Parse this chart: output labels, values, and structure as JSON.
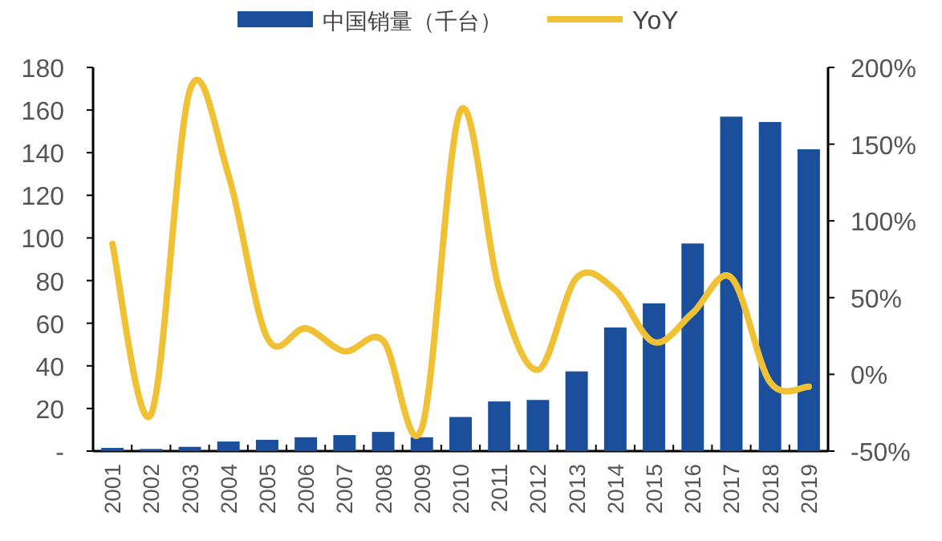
{
  "chart_data": {
    "type": "bar",
    "categories": [
      "2001",
      "2002",
      "2003",
      "2004",
      "2005",
      "2006",
      "2007",
      "2008",
      "2009",
      "2010",
      "2011",
      "2012",
      "2013",
      "2014",
      "2015",
      "2016",
      "2017",
      "2018",
      "2019"
    ],
    "series": [
      {
        "name": "中国销量（千台）",
        "color": "#1b4f9c",
        "values": [
          1.5,
          1,
          2,
          4.5,
          5.3,
          6.5,
          7.5,
          9,
          6.5,
          16,
          23.3,
          24,
          37.4,
          58,
          69.3,
          97.4,
          156.9,
          154.4,
          141.6
        ]
      },
      {
        "name": "YoY",
        "type": "line",
        "axis": "y2",
        "color": "#f0c134",
        "values": [
          85,
          -26,
          185,
          130,
          24,
          30,
          15,
          22,
          -35,
          172,
          55,
          3,
          63,
          55,
          21,
          40,
          63,
          -5,
          -8
        ]
      }
    ],
    "ylim": [
      0,
      180
    ],
    "yticks": [
      {
        "value": 0,
        "label": "-"
      },
      20,
      40,
      60,
      80,
      100,
      120,
      140,
      160,
      180
    ],
    "y2lim": [
      -50,
      200
    ],
    "y2ticks": [
      {
        "value": -50,
        "label": "-50%"
      },
      {
        "value": 0,
        "label": "0%"
      },
      {
        "value": 50,
        "label": "50%"
      },
      {
        "value": 100,
        "label": "100%"
      },
      {
        "value": 150,
        "label": "150%"
      },
      {
        "value": 200,
        "label": "200%"
      }
    ],
    "legend": "top"
  }
}
